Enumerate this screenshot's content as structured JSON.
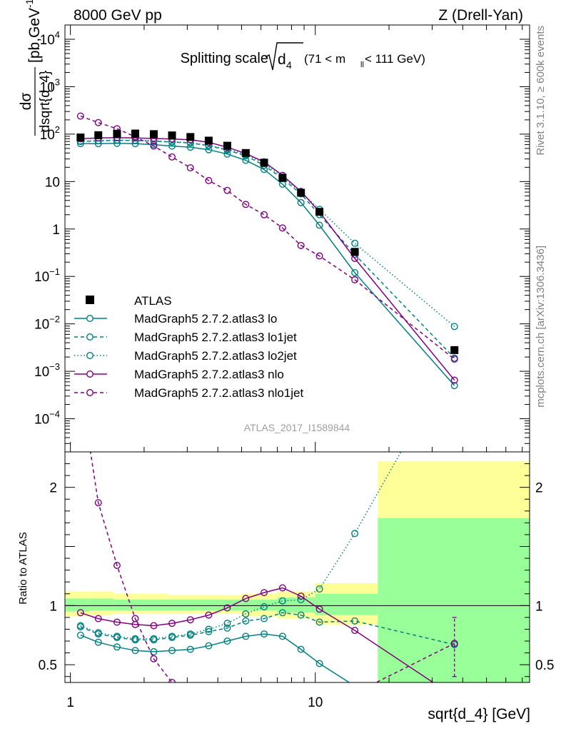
{
  "header": {
    "left": "8000 GeV pp",
    "right": "Z (Drell-Yan)"
  },
  "side_labels": {
    "rivet": "Rivet 3.1.10, ≥ 600k events",
    "mcplots": "mcplots.cern.ch [arXiv:1306.3436]"
  },
  "chart_data": {
    "type": "line",
    "title": {
      "main": "Splitting scale",
      "symbol": "d",
      "subscript": "4",
      "cut_open": "(71 < m",
      "cut_sub": "ll",
      "cut_close": " < 111 GeV)"
    },
    "watermark": "ATLAS_2017_I1589844",
    "xlabel": "sqrt{d_4} [GeV]",
    "xscale": "log",
    "xlim": [
      0.95,
      75
    ],
    "x_tick_labels": [
      {
        "value": 1,
        "label": "1"
      },
      {
        "value": 10,
        "label": "10"
      }
    ],
    "main_panel": {
      "ylabel_top": "dσ",
      "ylabel_bottom": "dsqrt{d_4}",
      "ylabel_unit": "[pb,GeV",
      "ylabel_unit_exp": "-1",
      "ylabel_unit_end": "]",
      "yscale": "log",
      "ylim": [
        2e-05,
        20000
      ],
      "y_tick_labels": [
        {
          "value": 10000,
          "base": "10",
          "exp": "4"
        },
        {
          "value": 1000,
          "base": "10",
          "exp": "3"
        },
        {
          "value": 100,
          "base": "10",
          "exp": "2"
        },
        {
          "value": 10,
          "base": "10",
          "exp": ""
        },
        {
          "value": 1,
          "base": "1",
          "exp": ""
        },
        {
          "value": 0.1,
          "base": "10",
          "exp": "−1"
        },
        {
          "value": 0.01,
          "base": "10",
          "exp": "−2"
        },
        {
          "value": 0.001,
          "base": "10",
          "exp": "−3"
        },
        {
          "value": 0.0001,
          "base": "10",
          "exp": "−4"
        }
      ],
      "legend_position": "bottom-left"
    },
    "ratio_panel": {
      "ylabel": "Ratio to ATLAS",
      "ylim": [
        0.35,
        2.3
      ],
      "y_tick_labels": [
        {
          "value": 0.5,
          "label": "0.5"
        },
        {
          "value": 1,
          "label": "1"
        },
        {
          "value": 2,
          "label": "2"
        }
      ],
      "bands": [
        {
          "x0": 0.95,
          "x1": 1.2,
          "stat": [
            0.95,
            1.06
          ],
          "total": [
            0.91,
            1.12
          ]
        },
        {
          "x0": 1.2,
          "x1": 1.5,
          "stat": [
            0.96,
            1.06
          ],
          "total": [
            0.92,
            1.12
          ]
        },
        {
          "x0": 1.5,
          "x1": 2.5,
          "stat": [
            0.96,
            1.05
          ],
          "total": [
            0.93,
            1.1
          ]
        },
        {
          "x0": 2.5,
          "x1": 5.0,
          "stat": [
            0.96,
            1.05
          ],
          "total": [
            0.93,
            1.09
          ]
        },
        {
          "x0": 5.0,
          "x1": 7.0,
          "stat": [
            0.96,
            1.05
          ],
          "total": [
            0.91,
            1.1
          ]
        },
        {
          "x0": 7.0,
          "x1": 10.0,
          "stat": [
            0.94,
            1.07
          ],
          "total": [
            0.89,
            1.12
          ]
        },
        {
          "x0": 10.0,
          "x1": 18.0,
          "stat": [
            0.92,
            1.1
          ],
          "total": [
            0.84,
            1.19
          ]
        },
        {
          "x0": 18.0,
          "x1": 75.0,
          "stat": [
            0.3,
            1.74
          ],
          "total": [
            0.3,
            2.22
          ]
        }
      ]
    },
    "data": {
      "name": "ATLAS",
      "color": "#000000",
      "x": [
        1.1,
        1.3,
        1.55,
        1.84,
        2.19,
        2.6,
        3.09,
        3.67,
        4.37,
        5.2,
        6.18,
        7.35,
        8.74,
        10.4,
        14.5,
        37.0
      ],
      "y": [
        85,
        95,
        102,
        103,
        100,
        94,
        87,
        73,
        57,
        40,
        25,
        12,
        5.8,
        2.3,
        0.33,
        0.0028
      ]
    },
    "series": [
      {
        "name": "MadGraph5 2.7.2.atlas3 lo",
        "color": "#008080",
        "dash": "solid",
        "x": [
          1.1,
          1.3,
          1.55,
          1.84,
          2.19,
          2.6,
          3.09,
          3.67,
          4.37,
          5.2,
          6.18,
          7.35,
          8.74,
          10.4,
          14.5,
          37.0
        ],
        "y": [
          63,
          63,
          64,
          63,
          60,
          56,
          53,
          47,
          38,
          28,
          18,
          8.8,
          3.6,
          1.2,
          0.12,
          0.0005
        ],
        "ratio": [
          0.75,
          0.69,
          0.65,
          0.62,
          0.61,
          0.62,
          0.63,
          0.66,
          0.7,
          0.74,
          0.76,
          0.74,
          0.63,
          0.51,
          0.32,
          0.2
        ]
      },
      {
        "name": "MadGraph5 2.7.2.atlas3 lo1jet",
        "color": "#008080",
        "dash": "5,4",
        "x": [
          1.1,
          1.3,
          1.55,
          1.84,
          2.19,
          2.6,
          3.09,
          3.67,
          4.37,
          5.2,
          6.18,
          7.35,
          8.74,
          10.4,
          14.5,
          37.0
        ],
        "y": [
          70,
          72,
          74,
          73,
          71,
          68,
          65,
          57,
          46,
          35,
          22,
          11.5,
          5.5,
          2.0,
          0.29,
          0.0019
        ],
        "ratio": [
          0.82,
          0.76,
          0.73,
          0.71,
          0.71,
          0.73,
          0.75,
          0.78,
          0.81,
          0.87,
          0.89,
          0.94,
          0.92,
          0.86,
          0.87,
          0.67
        ]
      },
      {
        "name": "MadGraph5 2.7.2.atlas3 lo2jet",
        "color": "#008080",
        "dash": "1.5,3",
        "x": [
          1.1,
          1.3,
          1.55,
          1.84,
          2.19,
          2.6,
          3.09,
          3.67,
          4.37,
          5.2,
          6.18,
          7.35,
          8.74,
          10.4,
          14.5,
          37.0
        ],
        "y": [
          71,
          73,
          75,
          74,
          72,
          69,
          66,
          58,
          48,
          37,
          24,
          12.5,
          6.0,
          2.6,
          0.5,
          0.0088
        ],
        "ratio": [
          0.83,
          0.77,
          0.74,
          0.72,
          0.72,
          0.74,
          0.76,
          0.8,
          0.85,
          0.93,
          0.99,
          1.04,
          1.05,
          1.14,
          1.61,
          3.1
        ]
      },
      {
        "name": "MadGraph5 2.7.2.atlas3 nlo",
        "color": "#800080",
        "dash": "solid",
        "x": [
          1.1,
          1.3,
          1.55,
          1.84,
          2.19,
          2.6,
          3.09,
          3.67,
          4.37,
          5.2,
          6.18,
          7.35,
          8.74,
          10.4,
          14.5,
          37.0
        ],
        "y": [
          80,
          83,
          84,
          83,
          81,
          79,
          76,
          67,
          53,
          39,
          26,
          13.5,
          6.2,
          2.3,
          0.24,
          0.00065
        ],
        "ratio": [
          0.94,
          0.89,
          0.86,
          0.84,
          0.83,
          0.85,
          0.88,
          0.92,
          0.98,
          1.06,
          1.11,
          1.15,
          1.08,
          0.97,
          0.79,
          0.23
        ]
      },
      {
        "name": "MadGraph5 2.7.2.atlas3 nlo1jet",
        "color": "#800080",
        "dash": "5,4",
        "x": [
          1.1,
          1.3,
          1.55,
          1.84,
          2.19,
          2.6,
          3.09,
          3.67,
          4.37,
          5.2,
          6.18,
          7.35,
          8.74,
          10.4,
          14.5,
          37.0
        ],
        "y": [
          240,
          175,
          130,
          88,
          56,
          33,
          19.5,
          10.5,
          6.5,
          3.3,
          2.0,
          1.05,
          0.45,
          0.27,
          0.085,
          0.0018
        ],
        "ratio": [
          2.85,
          1.87,
          1.34,
          0.89,
          0.55,
          0.35,
          0.23,
          0.14,
          0.11,
          0.08,
          0.08,
          0.09,
          0.08,
          0.12,
          0.26,
          0.68
        ],
        "last_ratio_error": [
          0.4,
          0.9
        ]
      }
    ]
  }
}
